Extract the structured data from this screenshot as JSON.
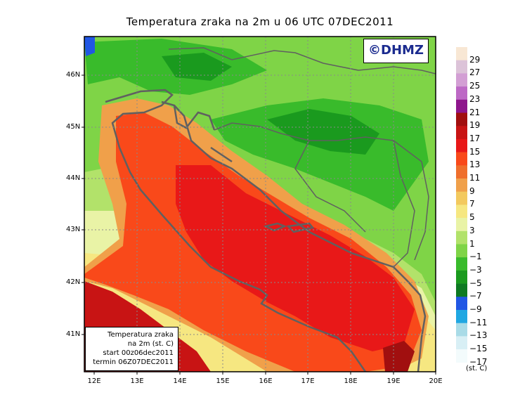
{
  "title": "Temperatura zraka na 2m u 06 UTC 07DEC2011",
  "logo_text": "©DHMZ",
  "info_box": {
    "line1": "Temperatura zraka",
    "line2": "na 2m (st. C)",
    "line3": "start 00z06dec2011",
    "line4": "termin 06Z07DEC2011"
  },
  "lat_labels": [
    "46N",
    "45N",
    "44N",
    "43N",
    "42N",
    "41N"
  ],
  "lon_labels": [
    "12E",
    "13E",
    "14E",
    "15E",
    "16E",
    "17E",
    "18E",
    "19E",
    "20E"
  ],
  "legend": {
    "labels": [
      "29",
      "27",
      "25",
      "23",
      "21",
      "19",
      "17",
      "15",
      "13",
      "11",
      "9",
      "7",
      "5",
      "3",
      "1",
      "−1",
      "−3",
      "−5",
      "−7",
      "−9",
      "−11",
      "−13",
      "−15",
      "−17"
    ],
    "unit": "(st. C)",
    "colors": [
      "#f8e7d4",
      "#dcc3d8",
      "#d39fd4",
      "#bd69c5",
      "#8e168c",
      "#a10f0f",
      "#c81414",
      "#e81818",
      "#f9491a",
      "#ef6f2c",
      "#f0a04a",
      "#f3c95e",
      "#f6e781",
      "#e9f3a6",
      "#b2e26a",
      "#7fd447",
      "#39bb2b",
      "#1a9a1e",
      "#0e7a22",
      "#2157e4",
      "#20a7e2",
      "#a9dbe7",
      "#d8eff5",
      "#f3fbfc"
    ]
  },
  "colors": {
    "logo_text": "#1b2b8f",
    "coast": "#606060",
    "grid": "#8a8a8a"
  }
}
